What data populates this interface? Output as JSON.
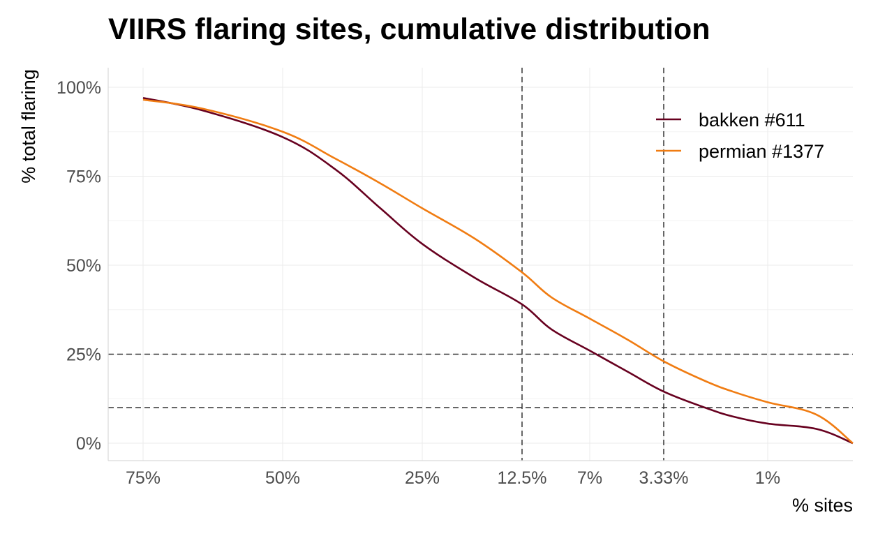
{
  "chart_data": {
    "type": "line",
    "title": "VIIRS flaring sites, cumulative distribution",
    "xlabel": "% sites",
    "ylabel": "% total flaring",
    "x_tick_labels": [
      "75%",
      "50%",
      "25%",
      "12.5%",
      "7%",
      "3.33%",
      "1%"
    ],
    "y_tick_labels": [
      "0%",
      "25%",
      "50%",
      "75%",
      "100%"
    ],
    "ylim": [
      0,
      1
    ],
    "x_scale": "decreasing, non-linear (percent of sites, top-N share)",
    "reference_lines": {
      "horizontal": [
        0.25,
        0.1
      ],
      "vertical": [
        "12.5%",
        "3.33%"
      ],
      "style": "dashed"
    },
    "grid": true,
    "legend_position": "top-right",
    "series": [
      {
        "name": "bakken #611",
        "color": "#67001f",
        "points": [
          [
            "75%",
            0.97
          ],
          [
            "63%",
            0.935
          ],
          [
            "50%",
            0.86
          ],
          [
            "40%",
            0.77
          ],
          [
            "32%",
            0.66
          ],
          [
            "25%",
            0.56
          ],
          [
            "18%",
            0.465
          ],
          [
            "12.5%",
            0.39
          ],
          [
            "9.5%",
            0.32
          ],
          [
            "7%",
            0.26
          ],
          [
            "5%",
            0.2
          ],
          [
            "3.33%",
            0.145
          ],
          [
            "2.2%",
            0.1
          ],
          [
            "1.6%",
            0.075
          ],
          [
            "1%",
            0.055
          ],
          [
            "0.5%",
            0.04
          ],
          [
            "0%",
            0.0
          ]
        ]
      },
      {
        "name": "permian #1377",
        "color": "#f07c12",
        "points": [
          [
            "75%",
            0.965
          ],
          [
            "63%",
            0.94
          ],
          [
            "50%",
            0.875
          ],
          [
            "40%",
            0.8
          ],
          [
            "32%",
            0.73
          ],
          [
            "25%",
            0.66
          ],
          [
            "18%",
            0.575
          ],
          [
            "12.5%",
            0.48
          ],
          [
            "9.5%",
            0.41
          ],
          [
            "7%",
            0.35
          ],
          [
            "5%",
            0.29
          ],
          [
            "3.33%",
            0.23
          ],
          [
            "2.2%",
            0.175
          ],
          [
            "1.6%",
            0.145
          ],
          [
            "1%",
            0.115
          ],
          [
            "0.5%",
            0.08
          ],
          [
            "0%",
            0.0
          ]
        ]
      }
    ]
  }
}
